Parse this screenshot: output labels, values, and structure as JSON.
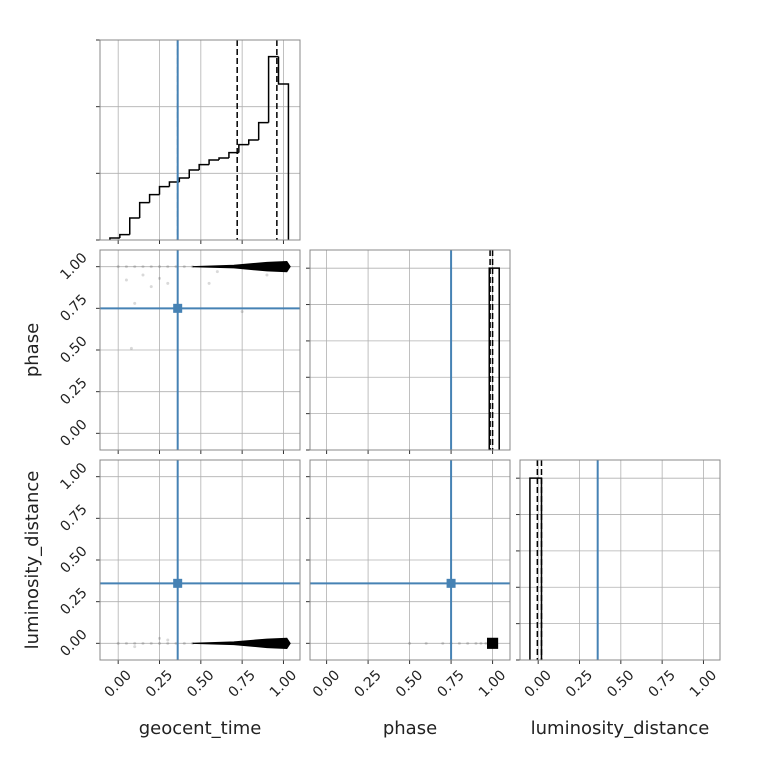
{
  "chart_data": [
    {
      "type": "histogram",
      "bins": [
        -0.05,
        0.01,
        0.07,
        0.13,
        0.19,
        0.25,
        0.31,
        0.37,
        0.43,
        0.49,
        0.55,
        0.61,
        0.67,
        0.73,
        0.79,
        0.85,
        0.91,
        0.97,
        1.03
      ],
      "counts": [
        0.03,
        0.08,
        0.33,
        0.56,
        0.68,
        0.8,
        0.87,
        0.93,
        1.05,
        1.13,
        1.2,
        1.23,
        1.31,
        1.43,
        1.5,
        1.76,
        2.75,
        2.34
      ],
      "quantiles": [
        0.36,
        0.72,
        0.96
      ],
      "truth": 0.36,
      "color": "#000000",
      "truth_color": "#4682b4",
      "xlim": [
        -0.11,
        1.1
      ],
      "ylim": [
        0,
        3
      ],
      "xticks": [
        0,
        0.25,
        0.5,
        0.75,
        1
      ],
      "yticks": [
        0,
        1,
        2,
        3
      ],
      "grid": true
    },
    {
      "type": "scatter",
      "ylabel": "phase",
      "samples_x": [
        0.0,
        0.05,
        0.1,
        0.15,
        0.2,
        0.25,
        0.3,
        0.35,
        0.4,
        0.45,
        0.05,
        0.1,
        0.15,
        0.2,
        0.25,
        0.3,
        0.08,
        0.55,
        0.75,
        0.6,
        0.9
      ],
      "samples_y": [
        1.0,
        1.0,
        1.0,
        1.0,
        1.0,
        1.0,
        1.0,
        1.0,
        1.0,
        1.0,
        0.92,
        0.78,
        0.95,
        0.88,
        0.93,
        0.9,
        0.51,
        0.9,
        0.73,
        0.97,
        0.95
      ],
      "contour_x": [
        0.45,
        0.7,
        0.9,
        1.02,
        1.04,
        1.02,
        0.9,
        0.7
      ],
      "contour_y": [
        1.0,
        1.008,
        1.025,
        1.03,
        1.0,
        0.97,
        0.975,
        0.993
      ],
      "truth_x": 0.36,
      "truth_y": 0.75,
      "color": "#000000",
      "truth_color": "#4682b4",
      "xlim": [
        -0.11,
        1.1
      ],
      "ylim": [
        -0.1,
        1.1
      ],
      "xticks": [
        0,
        0.25,
        0.5,
        0.75,
        1
      ],
      "yticks": [
        {
          "value": 0,
          "label": "0.00"
        },
        {
          "value": 0.25,
          "label": "0.25"
        },
        {
          "value": 0.5,
          "label": "0.50"
        },
        {
          "value": 0.75,
          "label": "0.75"
        },
        {
          "value": 1,
          "label": "1.00"
        }
      ],
      "grid": true
    },
    {
      "type": "histogram",
      "bins": [
        0.98,
        1.04
      ],
      "counts": [
        1
      ],
      "quantiles": [
        0.985,
        1.0
      ],
      "truth": 0.75,
      "color": "#000000",
      "truth_color": "#4682b4",
      "xlim": [
        -0.1,
        1.105
      ],
      "ylim": [
        0,
        1.1
      ],
      "xticks": [
        0,
        0.25,
        0.5,
        0.75,
        1
      ],
      "yticks": [
        0,
        0.2,
        0.4,
        0.6,
        0.8,
        1
      ],
      "grid": true
    },
    {
      "type": "scatter",
      "xlabel": "geocent_time",
      "ylabel": "luminosity_distance",
      "samples_x": [
        0.0,
        0.05,
        0.1,
        0.15,
        0.2,
        0.25,
        0.3,
        0.35,
        0.4,
        0.45,
        0.25,
        0.1,
        0.3
      ],
      "samples_y": [
        0.0,
        0.0,
        0.0,
        0.0,
        0.0,
        0.0,
        0.0,
        0.0,
        0.0,
        0.0,
        0.03,
        -0.02,
        0.02
      ],
      "contour_x": [
        0.45,
        0.7,
        0.9,
        1.02,
        1.04,
        1.02,
        0.9,
        0.7
      ],
      "contour_y": [
        0.0,
        0.008,
        0.025,
        0.03,
        0.0,
        -0.03,
        -0.025,
        -0.007
      ],
      "truth_x": 0.36,
      "truth_y": 0.36,
      "color": "#000000",
      "truth_color": "#4682b4",
      "xlim": [
        -0.11,
        1.1
      ],
      "ylim": [
        -0.1,
        1.1
      ],
      "xticks": [
        {
          "value": 0,
          "label": "0.00"
        },
        {
          "value": 0.25,
          "label": "0.25"
        },
        {
          "value": 0.5,
          "label": "0.50"
        },
        {
          "value": 0.75,
          "label": "0.75"
        },
        {
          "value": 1,
          "label": "1.00"
        }
      ],
      "yticks": [
        {
          "value": 0,
          "label": "0.00"
        },
        {
          "value": 0.25,
          "label": "0.25"
        },
        {
          "value": 0.5,
          "label": "0.50"
        },
        {
          "value": 0.75,
          "label": "0.75"
        },
        {
          "value": 1,
          "label": "1.00"
        }
      ],
      "grid": true
    },
    {
      "type": "scatter",
      "xlabel": "phase",
      "samples_x": [
        0.5,
        0.6,
        0.7,
        0.75,
        0.8,
        0.85,
        0.9,
        0.93,
        0.96
      ],
      "samples_y": [
        0.0,
        0.0,
        0.0,
        0.0,
        0.0,
        0.0,
        0.0,
        0.0,
        0.0
      ],
      "contour_x": [
        0.97,
        1.03,
        1.03,
        0.97
      ],
      "contour_y": [
        -0.03,
        -0.03,
        0.03,
        0.03
      ],
      "truth_x": 0.75,
      "truth_y": 0.36,
      "color": "#000000",
      "truth_color": "#4682b4",
      "xlim": [
        -0.1,
        1.105
      ],
      "ylim": [
        -0.1,
        1.1
      ],
      "xticks": [
        {
          "value": 0,
          "label": "0.00"
        },
        {
          "value": 0.25,
          "label": "0.25"
        },
        {
          "value": 0.5,
          "label": "0.50"
        },
        {
          "value": 0.75,
          "label": "0.75"
        },
        {
          "value": 1,
          "label": "1.00"
        }
      ],
      "yticks": [
        0,
        0.25,
        0.5,
        0.75,
        1
      ],
      "grid": true
    },
    {
      "type": "histogram",
      "xlabel": "luminosity_distance",
      "bins": [
        -0.05,
        0.02
      ],
      "counts": [
        1
      ],
      "quantiles": [
        -0.005,
        0.02
      ],
      "truth": 0.36,
      "color": "#000000",
      "truth_color": "#4682b4",
      "xlim": [
        -0.11,
        1.1
      ],
      "ylim": [
        0,
        1.1
      ],
      "xticks": [
        {
          "value": 0,
          "label": "0.00"
        },
        {
          "value": 0.25,
          "label": "0.25"
        },
        {
          "value": 0.5,
          "label": "0.50"
        },
        {
          "value": 0.75,
          "label": "0.75"
        },
        {
          "value": 1,
          "label": "1.00"
        }
      ],
      "yticks": [
        0,
        0.2,
        0.4,
        0.6,
        0.8,
        1
      ],
      "grid": true
    }
  ]
}
